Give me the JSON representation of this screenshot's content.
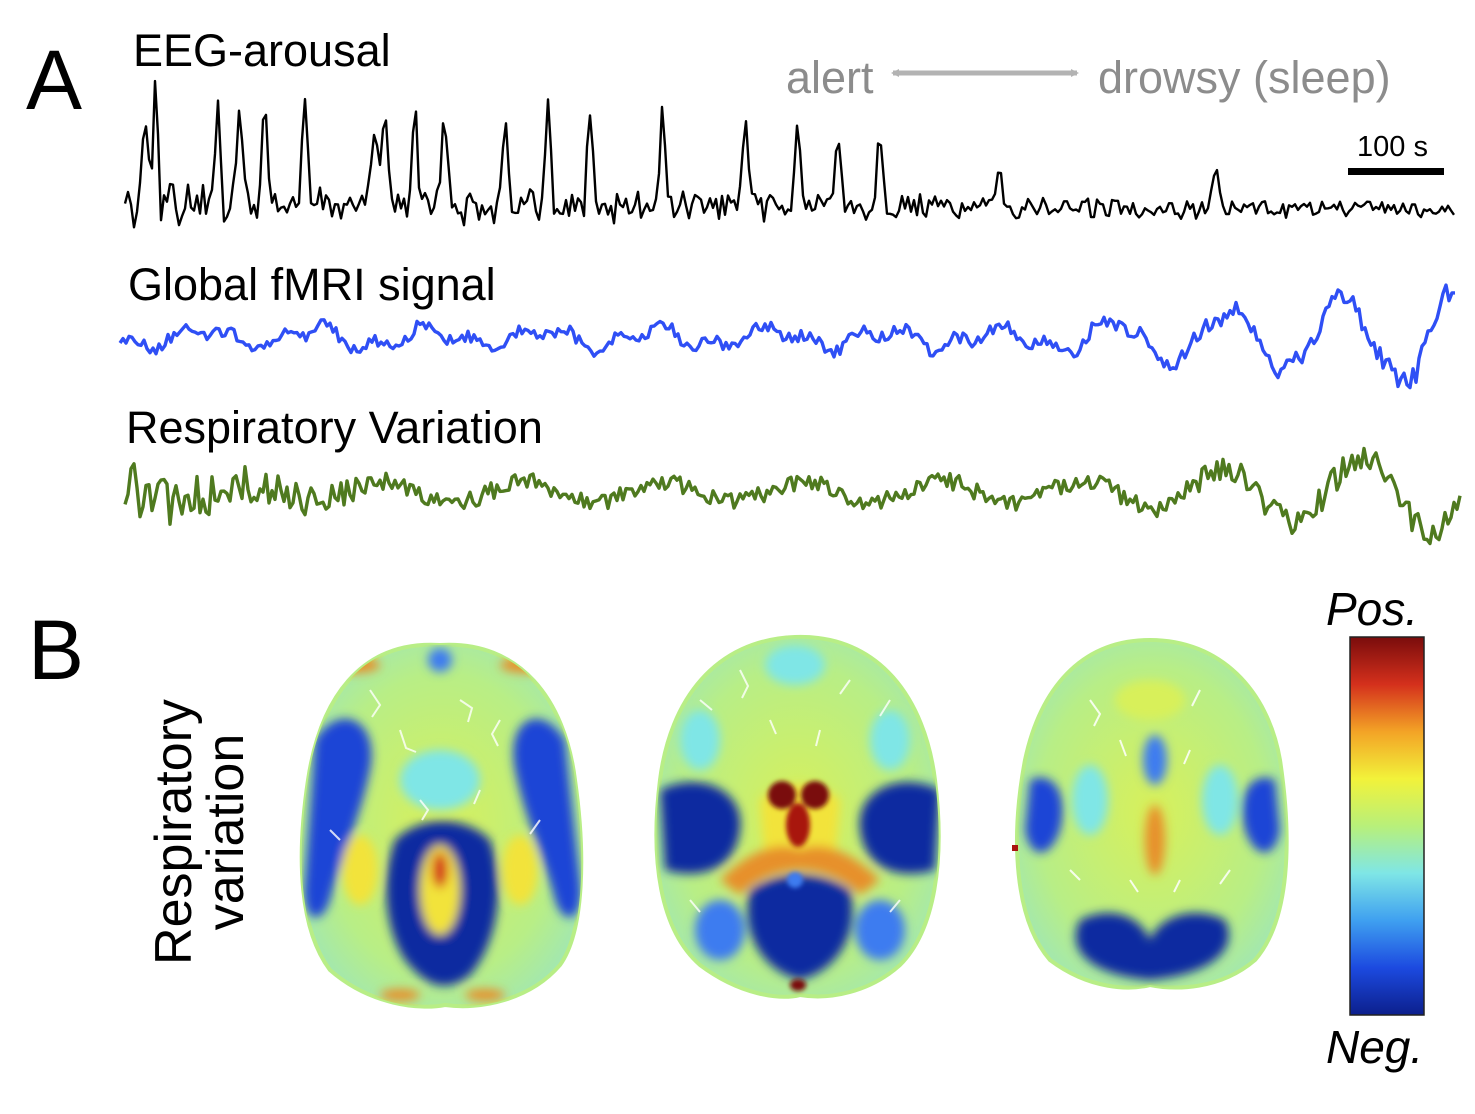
{
  "panel_a": {
    "letter": "A",
    "state_left": "alert",
    "state_right": "drowsy (sleep)",
    "scale_bar": "100 s",
    "traces": [
      {
        "title": "EEG-arousal",
        "color": "#000000"
      },
      {
        "title": "Global fMRI signal",
        "color": "#2f4ff5"
      },
      {
        "title": "Respiratory Variation",
        "color": "#4f7a1f"
      }
    ]
  },
  "panel_b": {
    "letter": "B",
    "ylabel_line1": "Respiratory",
    "ylabel_line2": "variation",
    "colorbar_top": "Pos.",
    "colorbar_bottom": "Neg.",
    "colormap": [
      "#0c1f8c",
      "#1c4ae0",
      "#3fa0f0",
      "#7fe6e6",
      "#b8f07a",
      "#f2f23a",
      "#f3a326",
      "#d4301c",
      "#7a0c0c"
    ]
  }
}
